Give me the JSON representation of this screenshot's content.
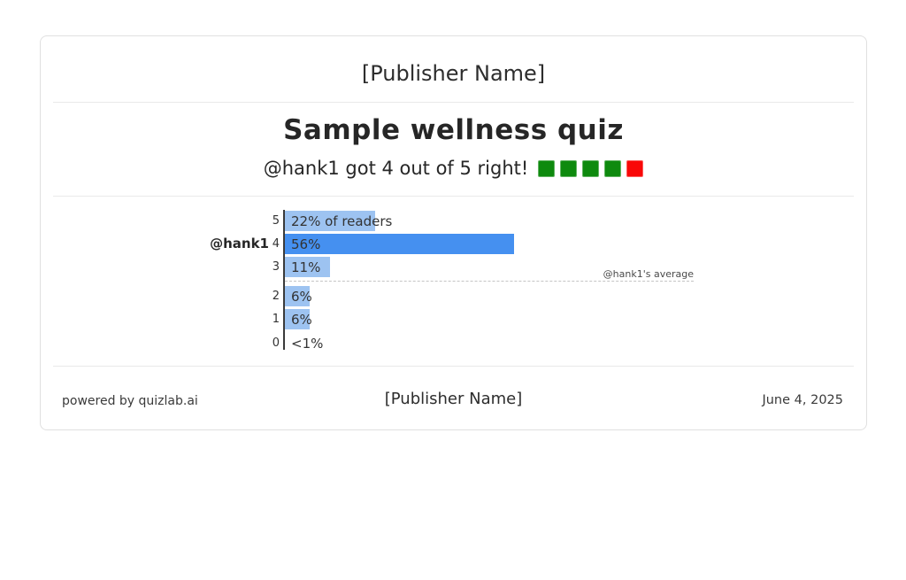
{
  "header": {
    "publisher": "[Publisher Name]"
  },
  "quiz": {
    "title": "Sample wellness quiz",
    "result_text": "@hank1 got 4 out of 5 right!",
    "score": 4,
    "total": 5,
    "squares": [
      "green",
      "green",
      "green",
      "green",
      "red"
    ],
    "colors": {
      "green": "#0e8a0e",
      "red": "#f90808"
    }
  },
  "chart_data": {
    "type": "bar",
    "orientation": "horizontal",
    "title": "",
    "xlabel": "% of readers",
    "ylabel": "score",
    "categories": [
      5,
      4,
      3,
      2,
      1,
      0
    ],
    "tick_labels": [
      "5",
      "4",
      "3",
      "2",
      "1",
      "0"
    ],
    "values": [
      22,
      56,
      11,
      6,
      6,
      0
    ],
    "bar_labels": [
      "22% of readers",
      "56%",
      "11%",
      "6%",
      "6%",
      "<1%"
    ],
    "highlight_score": 4,
    "user_label": "@hank1",
    "average_label": "@hank1's average",
    "average_between_scores": [
      3,
      2
    ],
    "xlim": [
      0,
      100
    ],
    "grid": false,
    "colors": {
      "bar": "#9dc3f1",
      "highlight": "#4590f0"
    }
  },
  "footer": {
    "powered_by": "powered by quizlab.ai",
    "publisher": "[Publisher Name]",
    "date": "June 4, 2025"
  }
}
